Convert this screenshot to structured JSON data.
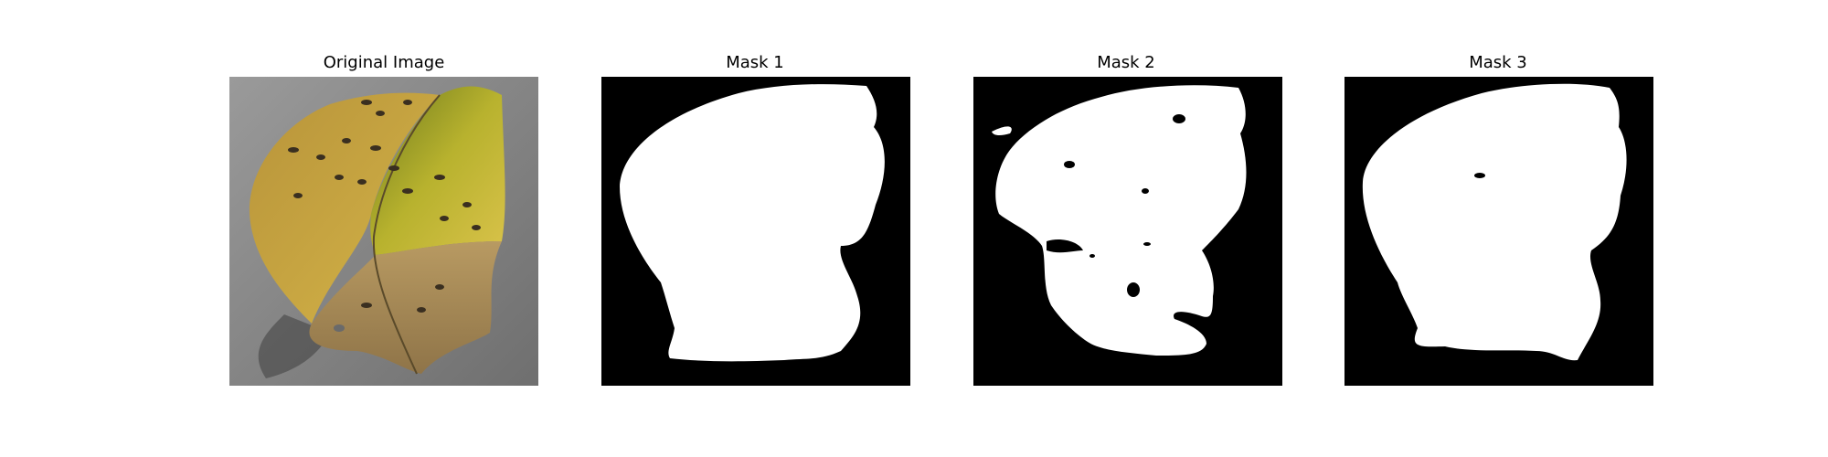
{
  "figure": {
    "panels": [
      {
        "title": "Original Image",
        "kind": "photo",
        "subject": "leaf-photo"
      },
      {
        "title": "Mask 1",
        "kind": "mask"
      },
      {
        "title": "Mask 2",
        "kind": "mask"
      },
      {
        "title": "Mask 3",
        "kind": "mask"
      }
    ]
  },
  "colors": {
    "background": "#ffffff",
    "mask_background": "#000000",
    "mask_foreground": "#ffffff",
    "photo_background": "#8c8c8c",
    "leaf_yellow": "#c9a83b",
    "leaf_green": "#a3a42a",
    "leaf_brown": "#a88a5a",
    "spot": "#3a2f20"
  }
}
